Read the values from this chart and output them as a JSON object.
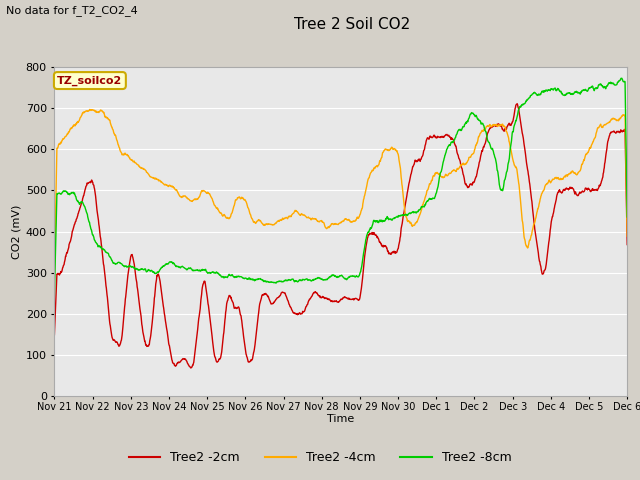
{
  "title": "Tree 2 Soil CO2",
  "subtitle": "No data for f_T2_CO2_4",
  "xlabel": "Time",
  "ylabel": "CO2 (mV)",
  "ylim": [
    0,
    800
  ],
  "fig_bg": "#d4d0c8",
  "plot_bg": "#e8e8e8",
  "grid_color": "#ffffff",
  "legend_box_text": "TZ_soilco2",
  "legend_box_fg": "#ffffcc",
  "legend_box_edge": "#ccaa00",
  "series_red_label": "Tree2 -2cm",
  "series_red_color": "#cc0000",
  "series_orange_label": "Tree2 -4cm",
  "series_orange_color": "#ffaa00",
  "series_green_label": "Tree2 -8cm",
  "series_green_color": "#00cc00",
  "xtick_labels": [
    "Nov 21",
    "Nov 22",
    "Nov 23",
    "Nov 24",
    "Nov 25",
    "Nov 26",
    "Nov 27",
    "Nov 28",
    "Nov 29",
    "Nov 30",
    "Dec 1",
    "Dec 2",
    "Dec 3",
    "Dec 4",
    "Dec 5",
    "Dec 6"
  ]
}
